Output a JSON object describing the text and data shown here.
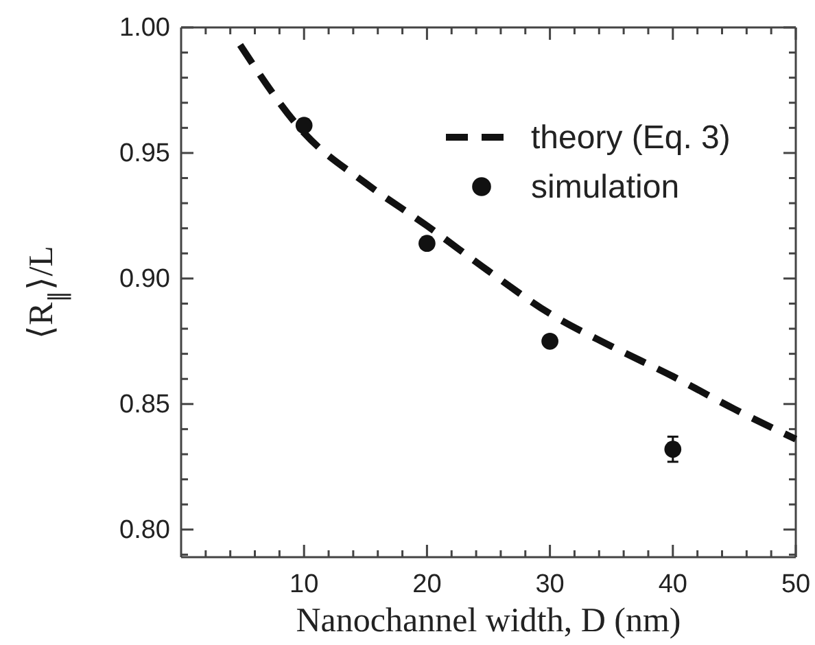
{
  "chart_data": {
    "type": "line",
    "xlabel": "Nanochannel width, D (nm)",
    "ylabel": "⟨R$_{∥}$⟩/L",
    "xlim": [
      0,
      50
    ],
    "ylim": [
      0.789,
      1.0
    ],
    "xticks": [
      {
        "value": 2,
        "label": null
      },
      {
        "value": 4,
        "label": null
      },
      {
        "value": 6,
        "label": null
      },
      {
        "value": 8,
        "label": null
      },
      10,
      {
        "value": 12,
        "label": null
      },
      {
        "value": 14,
        "label": null
      },
      {
        "value": 16,
        "label": null
      },
      {
        "value": 18,
        "label": null
      },
      20,
      {
        "value": 22,
        "label": null
      },
      {
        "value": 24,
        "label": null
      },
      {
        "value": 26,
        "label": null
      },
      {
        "value": 28,
        "label": null
      },
      30,
      {
        "value": 32,
        "label": null
      },
      {
        "value": 34,
        "label": null
      },
      {
        "value": 36,
        "label": null
      },
      {
        "value": 38,
        "label": null
      },
      40,
      {
        "value": 42,
        "label": null
      },
      {
        "value": 44,
        "label": null
      },
      {
        "value": 46,
        "label": null
      },
      {
        "value": 48,
        "label": null
      },
      50
    ],
    "yticks": [
      {
        "value": 0.79,
        "label": null
      },
      {
        "value": 0.8,
        "label": "0.80"
      },
      {
        "value": 0.81,
        "label": null
      },
      {
        "value": 0.82,
        "label": null
      },
      {
        "value": 0.83,
        "label": null
      },
      {
        "value": 0.84,
        "label": null
      },
      {
        "value": 0.85,
        "label": "0.85"
      },
      {
        "value": 0.86,
        "label": null
      },
      {
        "value": 0.87,
        "label": null
      },
      {
        "value": 0.88,
        "label": null
      },
      {
        "value": 0.89,
        "label": null
      },
      {
        "value": 0.9,
        "label": "0.90"
      },
      {
        "value": 0.91,
        "label": null
      },
      {
        "value": 0.92,
        "label": null
      },
      {
        "value": 0.93,
        "label": null
      },
      {
        "value": 0.94,
        "label": null
      },
      {
        "value": 0.95,
        "label": "0.95"
      },
      {
        "value": 0.96,
        "label": null
      },
      {
        "value": 0.97,
        "label": null
      },
      {
        "value": 0.98,
        "label": null
      },
      {
        "value": 0.99,
        "label": null
      },
      {
        "value": 1.0,
        "label": "1.00"
      }
    ],
    "legend": "top right",
    "series": [
      {
        "name": "theory (Eq. 3)",
        "line_style": "dashed",
        "marker": "none",
        "color": "#111111",
        "x": [
          4.8,
          10,
          15,
          20,
          25,
          30,
          35,
          40,
          45,
          50
        ],
        "values": [
          0.993,
          0.958,
          0.938,
          0.921,
          0.903,
          0.886,
          0.873,
          0.861,
          0.848,
          0.836
        ]
      },
      {
        "name": "simulation",
        "type": "scatter",
        "marker": "circle",
        "color": "#111111",
        "x": [
          10,
          20,
          30,
          40
        ],
        "values": [
          0.961,
          0.914,
          0.875,
          0.832
        ],
        "errors": [
          null,
          null,
          null,
          0.005
        ]
      }
    ]
  }
}
